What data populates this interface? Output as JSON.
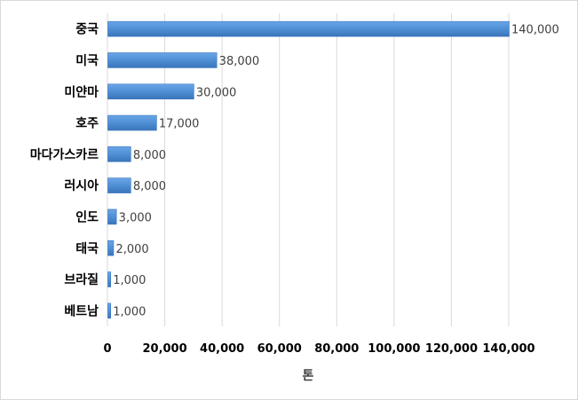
{
  "chart_data": {
    "type": "bar",
    "orientation": "horizontal",
    "categories": [
      "중국",
      "미국",
      "미얀마",
      "호주",
      "마다가스카르",
      "러시아",
      "인도",
      "태국",
      "브라질",
      "베트남"
    ],
    "values": [
      140000,
      38000,
      30000,
      17000,
      8000,
      8000,
      3000,
      2000,
      1000,
      1000
    ],
    "value_labels": [
      "140,000",
      "38,000",
      "30,000",
      "17,000",
      "8,000",
      "8,000",
      "3,000",
      "2,000",
      "1,000",
      "1,000"
    ],
    "title": "",
    "xlabel": "톤",
    "ylabel": "",
    "xlim": [
      0,
      140000
    ],
    "xticks": [
      0,
      20000,
      40000,
      60000,
      80000,
      100000,
      120000,
      140000
    ],
    "xtick_labels": [
      "0",
      "20,000",
      "40,000",
      "60,000",
      "80,000",
      "100,000",
      "120,000",
      "140,000"
    ],
    "grid": "vertical",
    "legend": "none",
    "bar_color": "#4f8fd6"
  }
}
